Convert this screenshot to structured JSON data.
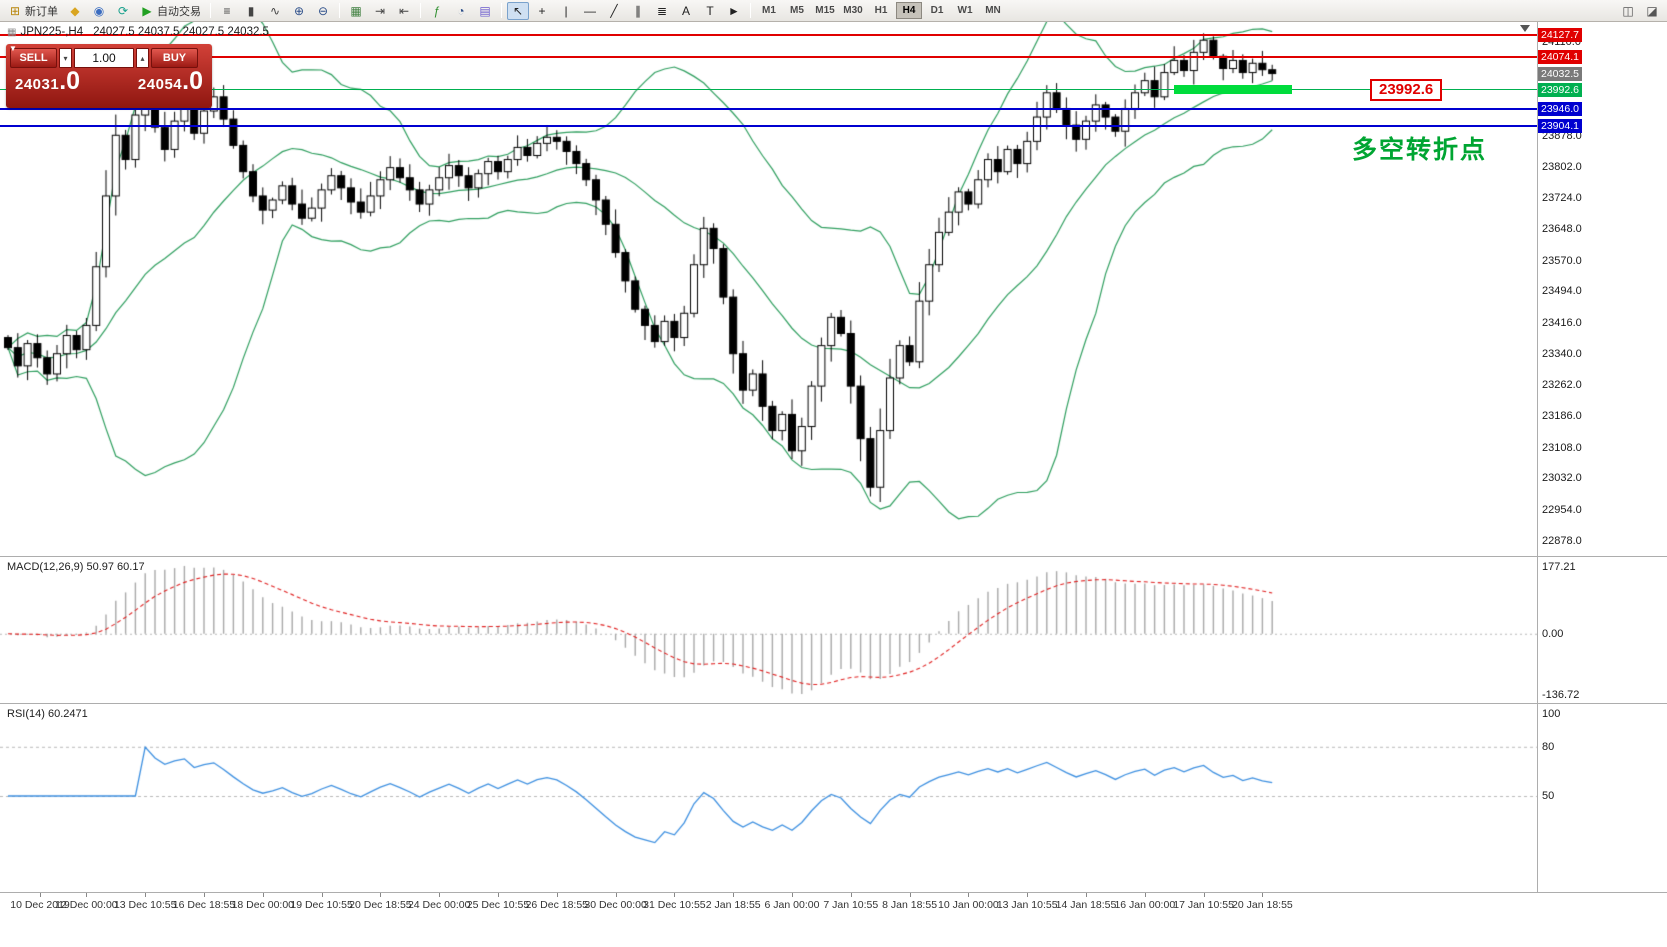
{
  "toolbar": {
    "groups": [
      [
        {
          "name": "new-order-button",
          "glyph": "⊞",
          "glyph_color": "#b8860b",
          "label": "新订单"
        },
        {
          "name": "metaquotes-icon",
          "glyph": "◆",
          "glyph_color": "#d9a520"
        },
        {
          "name": "profile-icon",
          "glyph": "◉",
          "glyph_color": "#3a6cc0"
        },
        {
          "name": "refresh-icon",
          "glyph": "⟳",
          "glyph_color": "#18a08c"
        },
        {
          "name": "autotrade-button",
          "glyph": "▶",
          "glyph_color": "#22a022",
          "label": "自动交易"
        }
      ],
      [
        {
          "name": "chart-bars-icon",
          "glyph": "≡",
          "glyph_color": "#444444"
        },
        {
          "name": "chart-candles-icon",
          "glyph": "▮",
          "glyph_color": "#444444"
        },
        {
          "name": "chart-line-icon",
          "glyph": "∿",
          "glyph_color": "#444444"
        },
        {
          "name": "zoom-in-icon",
          "glyph": "⊕",
          "glyph_color": "#2d4f8a"
        },
        {
          "name": "zoom-out-icon",
          "glyph": "⊖",
          "glyph_color": "#2d4f8a"
        }
      ],
      [
        {
          "name": "tile-windows-icon",
          "glyph": "▦",
          "glyph_color": "#3f7f3f"
        },
        {
          "name": "auto-scroll-icon",
          "glyph": "⇥",
          "glyph_color": "#444444"
        },
        {
          "name": "chart-shift-icon",
          "glyph": "⇤",
          "glyph_color": "#444444"
        }
      ],
      [
        {
          "name": "indicators-icon",
          "glyph": "ƒ",
          "glyph_color": "#2f8f2f"
        },
        {
          "name": "period-icon",
          "glyph": "◔",
          "glyph_color": "#2d4f8a"
        },
        {
          "name": "templates-icon",
          "glyph": "▤",
          "glyph_color": "#6a5acd"
        }
      ],
      [
        {
          "name": "cursor-icon",
          "glyph": "↖",
          "glyph_color": "#222222",
          "active": true
        },
        {
          "name": "crosshair-icon",
          "glyph": "+",
          "glyph_color": "#222222"
        },
        {
          "name": "vertical-line-icon",
          "glyph": "|",
          "glyph_color": "#222222"
        },
        {
          "name": "horizontal-line-icon",
          "glyph": "—",
          "glyph_color": "#222222"
        },
        {
          "name": "trendline-icon",
          "glyph": "╱",
          "glyph_color": "#222222"
        },
        {
          "name": "channel-icon",
          "glyph": "∥",
          "glyph_color": "#222222"
        },
        {
          "name": "fibonacci-icon",
          "glyph": "≣",
          "glyph_color": "#222222"
        },
        {
          "name": "text-icon",
          "glyph": "A",
          "glyph_color": "#222222"
        },
        {
          "name": "text-label-icon",
          "glyph": "T",
          "glyph_color": "#222222"
        },
        {
          "name": "arrow-tools-icon",
          "glyph": "►",
          "glyph_color": "#222222"
        }
      ]
    ],
    "timeframes": [
      "M1",
      "M5",
      "M15",
      "M30",
      "H1",
      "H4",
      "D1",
      "W1",
      "MN"
    ],
    "active_timeframe": "H4",
    "right_items": [
      {
        "name": "dock-icon",
        "glyph": "◫",
        "glyph_color": "#555555"
      },
      {
        "name": "layout-icon",
        "glyph": "◪",
        "glyph_color": "#555555"
      }
    ]
  },
  "chart": {
    "symbol_period": "JPN225-,H4",
    "ohlc_line": "24027.5 24037.5 24027.5 24032.5"
  },
  "trade_panel": {
    "sell_label": "SELL",
    "buy_label": "BUY",
    "volume": "1.00",
    "sell_price_int": "24031",
    "sell_price_dec": ".0",
    "buy_price_int": "24054",
    "buy_price_dec": ".0",
    "volume_down_glyph": "▾",
    "volume_up_glyph": "▴",
    "collapse_glyph": "▼"
  },
  "levels": {
    "h_lines": [
      {
        "name": "resistance-line-1",
        "value": 24127.7,
        "color": "#e00000",
        "width": 2
      },
      {
        "name": "resistance-line-2",
        "value": 24074.1,
        "color": "#e00000",
        "width": 2
      },
      {
        "name": "pivot-line",
        "value": 23992.6,
        "color": "#00b050",
        "width": 1
      },
      {
        "name": "support-line-1",
        "value": 23946.0,
        "color": "#0000d0",
        "width": 2
      },
      {
        "name": "support-line-2",
        "value": 23904.1,
        "color": "#0000d0",
        "width": 2
      }
    ],
    "highlight_segment": {
      "value": 23992.6,
      "from_bar": 119,
      "to_bar": 131,
      "color": "#00dc3c",
      "width": 9
    },
    "pivot_callout": "23992.6",
    "annotation": "多空转折点"
  },
  "price_axis": {
    "tags": [
      {
        "value": "24127.7",
        "bg": "#e00000"
      },
      {
        "value": "24074.1",
        "bg": "#e00000"
      },
      {
        "value": "24032.5",
        "bg": "#7a7a7a"
      },
      {
        "value": "23992.6",
        "bg": "#00b050"
      },
      {
        "value": "23946.0",
        "bg": "#0000d0"
      },
      {
        "value": "23904.1",
        "bg": "#0000d0"
      }
    ],
    "ticks": [
      "24110.0",
      "23878.0",
      "23802.0",
      "23724.0",
      "23648.0",
      "23570.0",
      "23494.0",
      "23416.0",
      "23340.0",
      "23262.0",
      "23186.0",
      "23108.0",
      "23032.0",
      "22954.0",
      "22878.0"
    ]
  },
  "macd_panel": {
    "label": "MACD(12,26,9) 50.97 60.17",
    "axis_labels": [
      "177.21",
      "0.00",
      "-136.72"
    ]
  },
  "rsi_panel": {
    "label": "RSI(14) 60.2471",
    "axis_labels": [
      "100",
      "80",
      "50"
    ],
    "levels": [
      80,
      50
    ]
  },
  "time_axis": {
    "first_bar": 2,
    "bar_step": 6,
    "labels": [
      "10 Dec 2019",
      "12 Dec 00:00",
      "13 Dec 10:55",
      "16 Dec 18:55",
      "18 Dec 00:00",
      "19 Dec 10:55",
      "20 Dec 18:55",
      "24 Dec 00:00",
      "25 Dec 10:55",
      "26 Dec 18:55",
      "30 Dec 00:00",
      "31 Dec 10:55",
      "2 Jan 18:55",
      "6 Jan 00:00",
      "7 Jan 10:55",
      "8 Jan 18:55",
      "10 Jan 00:00",
      "13 Jan 10:55",
      "14 Jan 18:55",
      "16 Jan 00:00",
      "17 Jan 10:55",
      "20 Jan 18:55"
    ]
  },
  "colors": {
    "up_candle": "#ffffff",
    "down_candle": "#000000",
    "candle_outline": "#000000",
    "bollinger": "#2e9e5e",
    "macd_histogram": "#a8a8a8",
    "macd_signal": "#e02020",
    "rsi_line": "#3c8fe0",
    "resistance": "#e00000",
    "support": "#0000d0",
    "pivot": "#00b050",
    "highlight": "#00dc3c",
    "annotation": "#00a532"
  },
  "chart_data": {
    "type": "candlestick",
    "symbol": "JPN225-",
    "timeframe": "H4",
    "last_ohlc": {
      "open": 24027.5,
      "high": 24037.5,
      "low": 24027.5,
      "close": 24032.5
    },
    "visible_price_range": [
      22840,
      24160
    ],
    "closes": [
      23355,
      23310,
      23365,
      23330,
      23290,
      23340,
      23385,
      23350,
      23410,
      23555,
      23730,
      23880,
      23820,
      23930,
      23990,
      23900,
      23845,
      23915,
      23960,
      23885,
      23940,
      23975,
      23920,
      23855,
      23790,
      23730,
      23695,
      23720,
      23755,
      23710,
      23675,
      23700,
      23745,
      23780,
      23750,
      23715,
      23690,
      23730,
      23770,
      23800,
      23775,
      23745,
      23710,
      23745,
      23775,
      23805,
      23780,
      23750,
      23785,
      23815,
      23790,
      23820,
      23850,
      23830,
      23860,
      23875,
      23865,
      23840,
      23810,
      23770,
      23720,
      23660,
      23590,
      23520,
      23450,
      23410,
      23370,
      23420,
      23380,
      23440,
      23560,
      23650,
      23600,
      23480,
      23340,
      23250,
      23290,
      23210,
      23150,
      23190,
      23100,
      23160,
      23260,
      23360,
      23430,
      23390,
      23260,
      23130,
      23010,
      23150,
      23280,
      23360,
      23320,
      23470,
      23560,
      23640,
      23690,
      23740,
      23710,
      23770,
      23820,
      23790,
      23845,
      23810,
      23865,
      23925,
      23985,
      23945,
      23905,
      23870,
      23915,
      23955,
      23925,
      23890,
      23945,
      23985,
      24015,
      23975,
      24035,
      24065,
      24040,
      24085,
      24115,
      24075,
      24045,
      24065,
      24035,
      24058,
      24042,
      24032.5
    ],
    "indicators": {
      "bollinger": {
        "period": 20,
        "deviation": 2
      },
      "macd": {
        "fast": 12,
        "slow": 26,
        "signal": 9,
        "values": [
          50.97,
          60.17
        ],
        "axis_range": [
          -136.72,
          177.21
        ]
      },
      "rsi": {
        "period": 14,
        "value": 60.2471,
        "levels": [
          80,
          50
        ]
      }
    }
  }
}
